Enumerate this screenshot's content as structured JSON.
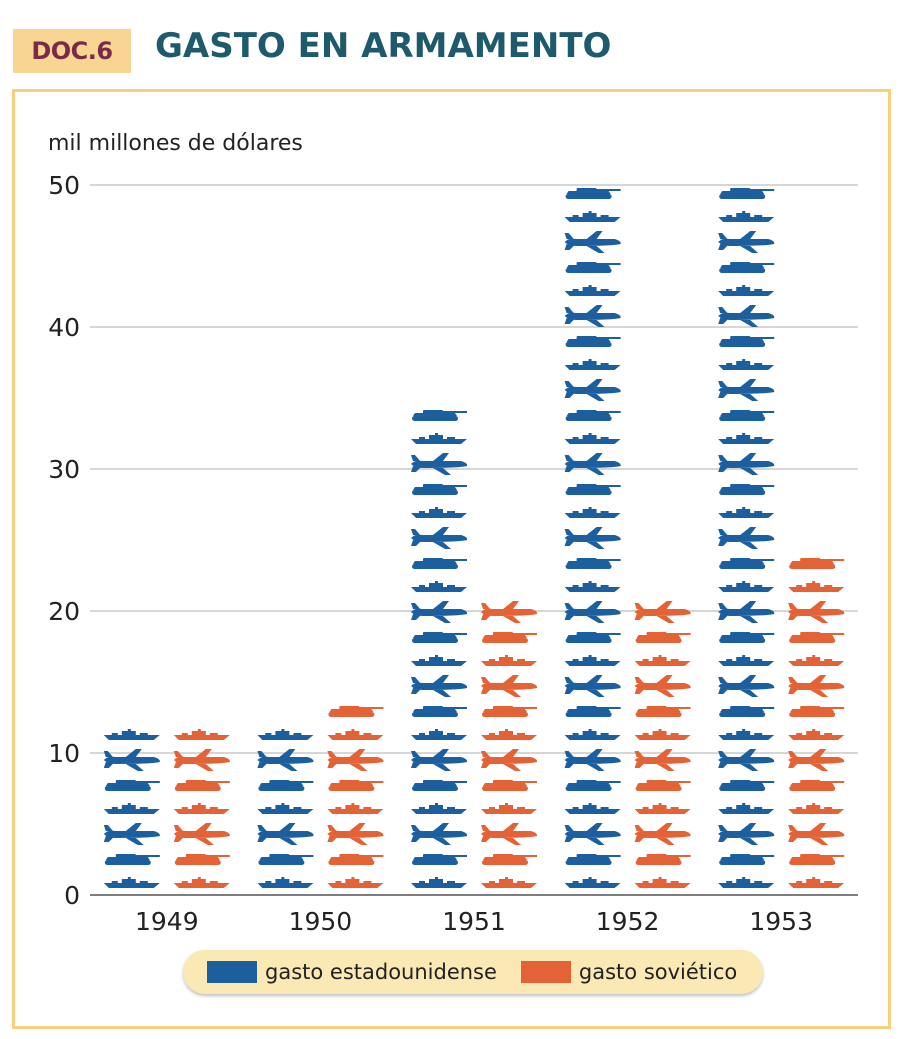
{
  "header": {
    "badge": "DOC.6",
    "title": "GASTO EN ARMAMENTO"
  },
  "colors": {
    "us": "#1c5f9e",
    "soviet": "#e36236",
    "grid": "#bdbdbd",
    "frame": "#f6cf7f",
    "legend_bg": "#fbe9b5"
  },
  "chart_data": {
    "type": "bar",
    "ylabel": "mil millones de dólares",
    "xlabel": "",
    "ylim": [
      0,
      50
    ],
    "yticks": [
      0,
      10,
      20,
      30,
      40,
      50
    ],
    "grid": true,
    "legend_position": "bottom",
    "categories": [
      "1949",
      "1950",
      "1951",
      "1952",
      "1953"
    ],
    "series": [
      {
        "name": "gasto estadounidense",
        "color": "#1c5f9e",
        "values": [
          12.5,
          12.5,
          35,
          49.5,
          50
        ]
      },
      {
        "name": "gasto soviético",
        "color": "#e36236",
        "values": [
          12.5,
          13,
          19.5,
          20.5,
          24.5
        ]
      }
    ]
  },
  "icons": [
    "ship-icon",
    "tank-icon",
    "plane-icon"
  ]
}
